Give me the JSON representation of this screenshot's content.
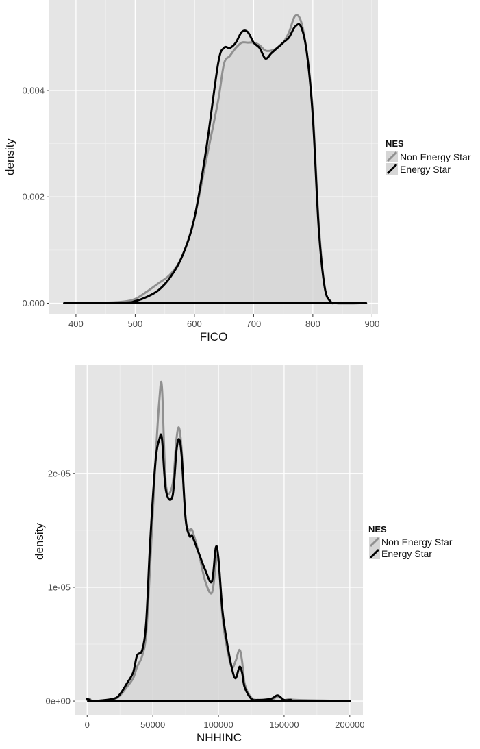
{
  "colors": {
    "panel": "#e5e5e5",
    "grid_major": "#ffffff",
    "grid_minor": "#f0f0f0",
    "fill": "#d6d6d6",
    "non_energy_star": "#909090",
    "energy_star": "#000000"
  },
  "chart_data": [
    {
      "type": "area",
      "xlabel": "FICO",
      "ylabel": "density",
      "xlim": [
        355,
        910
      ],
      "ylim": [
        -0.0002,
        0.0057
      ],
      "x_ticks": [
        400,
        500,
        600,
        700,
        800,
        900
      ],
      "x_tick_labels": [
        "400",
        "500",
        "600",
        "700",
        "800",
        "900"
      ],
      "y_ticks": [
        0,
        0.002,
        0.004
      ],
      "y_tick_labels": [
        "0.000",
        "0.002",
        "0.004"
      ],
      "grid": true,
      "legend": {
        "title": "NES",
        "position": "right",
        "entries": [
          "Non Energy Star",
          "Energy Star"
        ]
      },
      "series": [
        {
          "name": "Non Energy Star",
          "x": [
            380,
            450,
            480,
            500,
            520,
            540,
            560,
            580,
            600,
            620,
            640,
            650,
            660,
            670,
            680,
            690,
            700,
            710,
            720,
            730,
            740,
            750,
            760,
            770,
            780,
            790,
            800,
            810,
            820,
            830,
            840,
            890
          ],
          "y": [
            0,
            1e-05,
            3e-05,
            8e-05,
            0.00022,
            0.00038,
            0.00055,
            0.0009,
            0.0016,
            0.0027,
            0.0038,
            0.0045,
            0.00465,
            0.0048,
            0.0049,
            0.0049,
            0.0049,
            0.00485,
            0.00475,
            0.00475,
            0.0048,
            0.0049,
            0.0051,
            0.0054,
            0.0053,
            0.0047,
            0.0036,
            0.0015,
            0.0003,
            4e-05,
            0,
            0
          ]
        },
        {
          "name": "Energy Star",
          "x": [
            380,
            480,
            500,
            520,
            540,
            560,
            580,
            600,
            620,
            640,
            650,
            660,
            670,
            680,
            690,
            700,
            710,
            720,
            730,
            740,
            750,
            760,
            770,
            780,
            790,
            800,
            810,
            820,
            830,
            840,
            890
          ],
          "y": [
            0,
            1e-05,
            4e-05,
            0.00012,
            0.00025,
            0.0005,
            0.0009,
            0.0016,
            0.0029,
            0.0045,
            0.0048,
            0.0048,
            0.0049,
            0.0051,
            0.0051,
            0.0049,
            0.0048,
            0.0046,
            0.0047,
            0.0048,
            0.0049,
            0.005,
            0.0052,
            0.0052,
            0.0047,
            0.0035,
            0.0014,
            0.0003,
            3e-05,
            0,
            0
          ]
        }
      ]
    },
    {
      "type": "area",
      "xlabel": "NHHINC",
      "ylabel": "density",
      "xlim": [
        -9000,
        210000
      ],
      "ylim": [
        -1.2e-06,
        2.95e-05
      ],
      "x_ticks": [
        0,
        50000,
        100000,
        150000,
        200000
      ],
      "x_tick_labels": [
        "0",
        "50000",
        "100000",
        "150000",
        "200000"
      ],
      "y_ticks": [
        0,
        1e-05,
        2e-05
      ],
      "y_tick_labels": [
        "0e+00",
        "1e-05",
        "2e-05"
      ],
      "grid": true,
      "legend": {
        "title": "NES",
        "position": "right",
        "entries": [
          "Non Energy Star",
          "Energy Star"
        ]
      },
      "series": [
        {
          "name": "Non Energy Star",
          "x": [
            0,
            2000,
            5000,
            20000,
            25000,
            30000,
            35000,
            38000,
            42000,
            45000,
            48000,
            52000,
            55000,
            57000,
            60000,
            65000,
            68000,
            70000,
            72000,
            75000,
            78000,
            80000,
            85000,
            90000,
            95000,
            98000,
            100000,
            103000,
            106000,
            110000,
            113000,
            116000,
            118000,
            120000,
            125000,
            130000,
            140000,
            145000,
            150000,
            155000,
            160000,
            200000
          ],
          "y": [
            1e-07,
            2e-07,
            0,
            2e-07,
            5e-07,
            1.2e-06,
            2e-06,
            3e-06,
            4e-06,
            6e-06,
            1.2e-05,
            2.1e-05,
            2.65e-05,
            2.75e-05,
            1.9e-05,
            1.9e-05,
            2.3e-05,
            2.4e-05,
            2.2e-05,
            1.6e-05,
            1.5e-05,
            1.5e-05,
            1.3e-05,
            1.05e-05,
            9.5e-06,
            1.2e-05,
            1.25e-05,
            7.5e-06,
            5e-06,
            3e-06,
            3.5e-06,
            4.5e-06,
            3.5e-06,
            1.5e-06,
            3e-07,
            1e-07,
            1e-07,
            4e-07,
            1e-07,
            2e-07,
            1e-07,
            0
          ]
        },
        {
          "name": "Energy Star",
          "x": [
            0,
            2000,
            5000,
            20000,
            25000,
            30000,
            35000,
            38000,
            42000,
            45000,
            48000,
            52000,
            55000,
            57000,
            60000,
            65000,
            68000,
            70000,
            72000,
            75000,
            78000,
            80000,
            85000,
            90000,
            95000,
            98000,
            100000,
            103000,
            106000,
            110000,
            113000,
            116000,
            118000,
            120000,
            125000,
            130000,
            140000,
            145000,
            150000,
            155000,
            160000,
            200000
          ],
          "y": [
            2e-07,
            1e-07,
            0,
            2e-07,
            6e-07,
            1.5e-06,
            2.5e-06,
            4e-06,
            4.5e-06,
            7e-06,
            1.4e-05,
            2.1e-05,
            2.3e-05,
            2.3e-05,
            1.85e-05,
            1.8e-05,
            2.2e-05,
            2.3e-05,
            2.15e-05,
            1.6e-05,
            1.45e-05,
            1.45e-05,
            1.3e-05,
            1.15e-05,
            1.05e-05,
            1.35e-05,
            1.25e-05,
            8e-06,
            5.5e-06,
            3e-06,
            2e-06,
            3e-06,
            2.5e-06,
            1.2e-06,
            2e-07,
            1e-07,
            2e-07,
            5e-07,
            1e-07,
            1e-07,
            0,
            0
          ]
        }
      ]
    }
  ]
}
